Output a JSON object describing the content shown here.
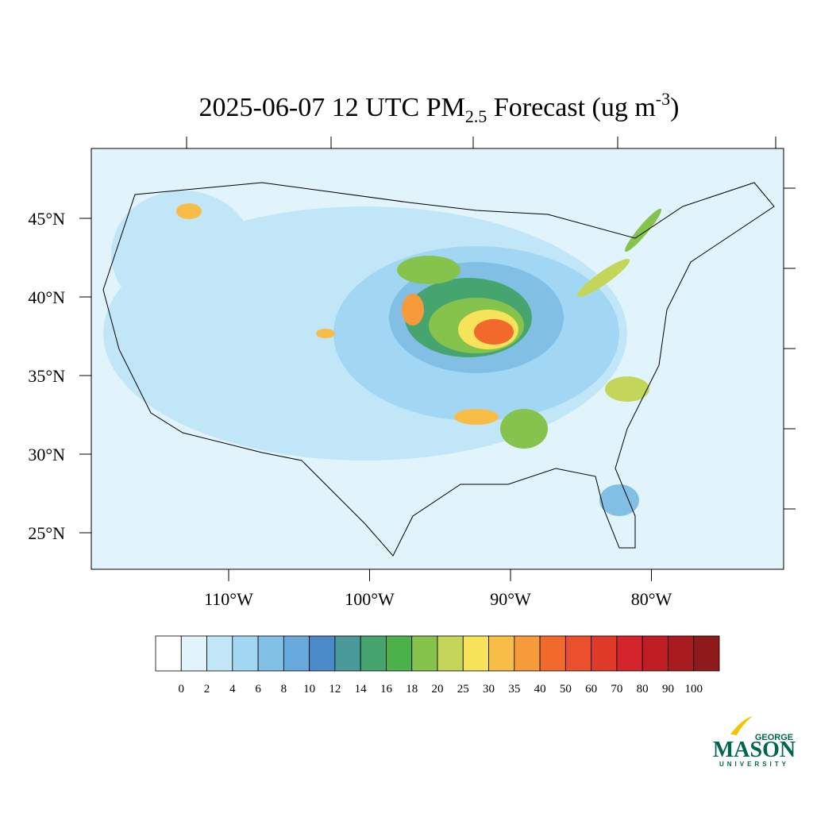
{
  "title": {
    "main": "2025-06-07 12 UTC PM",
    "subscript": "2.5",
    "middle": " Forecast (ug m",
    "superscript": "-3",
    "end": ")"
  },
  "latitude_ticks": [
    {
      "value": 45,
      "label": "45°N"
    },
    {
      "value": 40,
      "label": "40°N"
    },
    {
      "value": 35,
      "label": "35°N"
    },
    {
      "value": 30,
      "label": "30°N"
    },
    {
      "value": 25,
      "label": "25°N"
    }
  ],
  "longitude_ticks": [
    {
      "value": -110,
      "label": "110°W"
    },
    {
      "value": -100,
      "label": "100°W"
    },
    {
      "value": -90,
      "label": "90°W"
    },
    {
      "value": -80,
      "label": "80°W"
    }
  ],
  "colorbar": {
    "levels": [
      0,
      2,
      4,
      6,
      8,
      10,
      12,
      14,
      16,
      18,
      20,
      25,
      30,
      35,
      40,
      50,
      60,
      70,
      80,
      90,
      100
    ],
    "colors": [
      "#ffffff",
      "#e1f3fb",
      "#c1e6f8",
      "#a1d7f3",
      "#81bfe5",
      "#67a9dc",
      "#4b8ac8",
      "#4a9a9a",
      "#46a56e",
      "#4bb24b",
      "#86c34c",
      "#c4d65a",
      "#f6e35a",
      "#f7bd47",
      "#f79a3c",
      "#f2692c",
      "#e9502b",
      "#df3a27",
      "#d4242c",
      "#be1e24",
      "#a81c20",
      "#8e1a1b"
    ]
  },
  "logo": {
    "top": "GEORGE",
    "name": "MASON",
    "bottom": "UNIVERSITY"
  }
}
